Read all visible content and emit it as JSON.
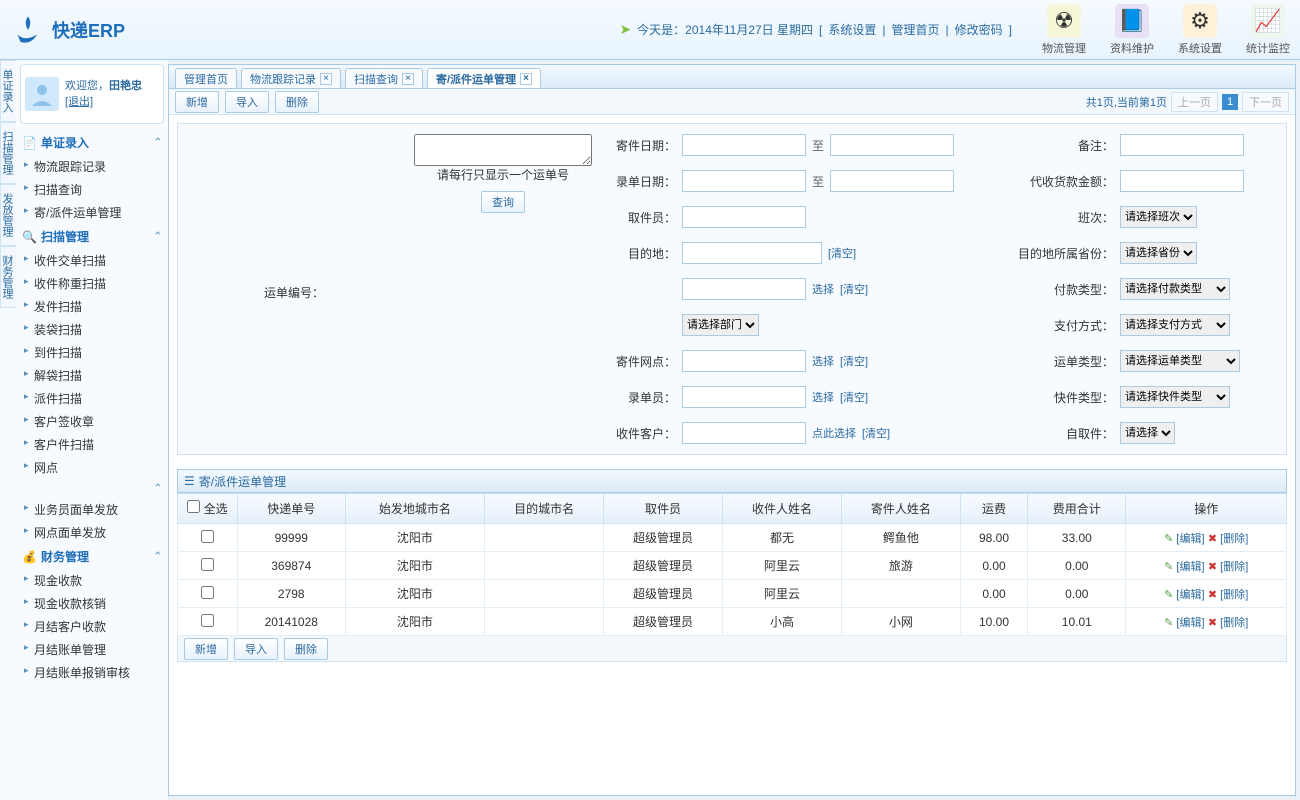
{
  "app_title": "快递ERP",
  "date_line": "今天是：2014年11月27日 星期四",
  "header_links": {
    "sys": "系统设置",
    "home": "管理首页",
    "pwd": "修改密码"
  },
  "header_icons": {
    "a": "物流管理",
    "b": "资料维护",
    "c": "系统设置",
    "d": "统计监控"
  },
  "user": {
    "welcome": "欢迎您，",
    "name": "田艳忠",
    "logout": "[退出]"
  },
  "vert_tabs": [
    "单证录入",
    "扫描管理",
    "发放管理",
    "财务管理"
  ],
  "nav": {
    "g1_title": "单证录入",
    "g1": [
      "物流跟踪记录",
      "扫描查询",
      "寄/派件运单管理"
    ],
    "g2_title": "扫描管理",
    "g2": [
      "收件交单扫描",
      "收件称重扫描",
      "发件扫描",
      "装袋扫描",
      "到件扫描",
      "解袋扫描",
      "派件扫描",
      "客户签收章",
      "客户件扫描",
      "网点"
    ],
    "g3": [
      "业务员面单发放",
      "网点面单发放"
    ],
    "g4_title": "财务管理",
    "g4": [
      "现金收款",
      "现金收款核销",
      "月结客户收款",
      "月结账单管理",
      "月结账单报销审核"
    ]
  },
  "tabs": {
    "t1": "管理首页",
    "t2": "物流跟踪记录",
    "t3": "扫描查询",
    "t4": "寄/派件运单管理"
  },
  "toolbar": {
    "add": "新增",
    "import": "导入",
    "del": "删除"
  },
  "pager": {
    "summary": "共1页,当前第1页",
    "prev": "上一页",
    "num": "1",
    "next": "下一页"
  },
  "search": {
    "waybill_label": "运单编号：",
    "hint": "请每行只显示一个运单号",
    "query_btn": "查询",
    "left": {
      "send_date": "寄件日期：",
      "to": "至",
      "entry_date": "录单日期：",
      "picker": "取件员：",
      "dest": "目的地：",
      "clear": "[清空]",
      "select": "选择",
      "dept_placeholder": "请选择部门",
      "send_site": "寄件网点：",
      "entry_user": "录单员：",
      "receiver": "收件客户：",
      "click_select": "点此选择"
    },
    "right": {
      "remark": "备注：",
      "cod": "代收货款金额：",
      "shift": "班次：",
      "shift_ph": "请选择班次",
      "dest_prov": "目的地所属省份：",
      "prov_ph": "请选择省份",
      "pay_type": "付款类型：",
      "pay_ph": "请选择付款类型",
      "pay_way": "支付方式：",
      "payway_ph": "请选择支付方式",
      "waybill_type": "运单类型：",
      "wbt_ph": "请选择运单类型",
      "express_type": "快件类型：",
      "exp_ph": "请选择快件类型",
      "self_pick": "自取件：",
      "sp_ph": "请选择"
    }
  },
  "panel_title": "寄/派件运单管理",
  "cols": {
    "sel": "全选",
    "no": "快递单号",
    "origin": "始发地城市名",
    "dest": "目的城市名",
    "picker": "取件员",
    "recv": "收件人姓名",
    "sender": "寄件人姓名",
    "freight": "运费",
    "total": "费用合计",
    "op": "操作"
  },
  "op_edit": "[编辑]",
  "op_del": "[删除]",
  "rows": [
    {
      "no": "99999",
      "origin": "沈阳市",
      "dest": "",
      "picker": "超级管理员",
      "recv": "都无",
      "sender": "鳄鱼他",
      "freight": "98.00",
      "total": "33.00"
    },
    {
      "no": "369874",
      "origin": "沈阳市",
      "dest": "",
      "picker": "超级管理员",
      "recv": "阿里云",
      "sender": "旅游",
      "freight": "0.00",
      "total": "0.00"
    },
    {
      "no": "2798",
      "origin": "沈阳市",
      "dest": "",
      "picker": "超级管理员",
      "recv": "阿里云",
      "sender": "",
      "freight": "0.00",
      "total": "0.00"
    },
    {
      "no": "20141028",
      "origin": "沈阳市",
      "dest": "",
      "picker": "超级管理员",
      "recv": "小高",
      "sender": "小网",
      "freight": "10.00",
      "total": "10.01"
    }
  ],
  "colors": {
    "accent": "#2c6aa0",
    "border": "#a9cbe6"
  }
}
